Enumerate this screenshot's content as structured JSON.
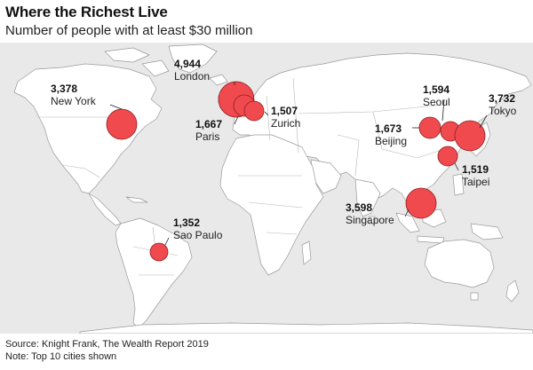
{
  "title": "Where the Richest Live",
  "subtitle": "Number of people with at least $30 million",
  "colors": {
    "bubble": "#f04a4e",
    "bubble_stroke": "#8a1f22",
    "land": "#ffffff",
    "water": "#e9e9e9",
    "border": "#9a9a9a"
  },
  "cities": [
    {
      "name": "London",
      "value": "4,944"
    },
    {
      "name": "Tokyo",
      "value": "3,732"
    },
    {
      "name": "Singapore",
      "value": "3,598"
    },
    {
      "name": "New York",
      "value": "3,378"
    },
    {
      "name": "Beijing",
      "value": "1,673"
    },
    {
      "name": "Paris",
      "value": "1,667"
    },
    {
      "name": "Seoul",
      "value": "1,594"
    },
    {
      "name": "Taipei",
      "value": "1,519"
    },
    {
      "name": "Zurich",
      "value": "1,507"
    },
    {
      "name": "Sao Paulo",
      "value": "1,352"
    }
  ],
  "footer": {
    "source": "Source: Knight Frank, The Wealth Report 2019",
    "note": "Note: Top 10 cities shown"
  }
}
